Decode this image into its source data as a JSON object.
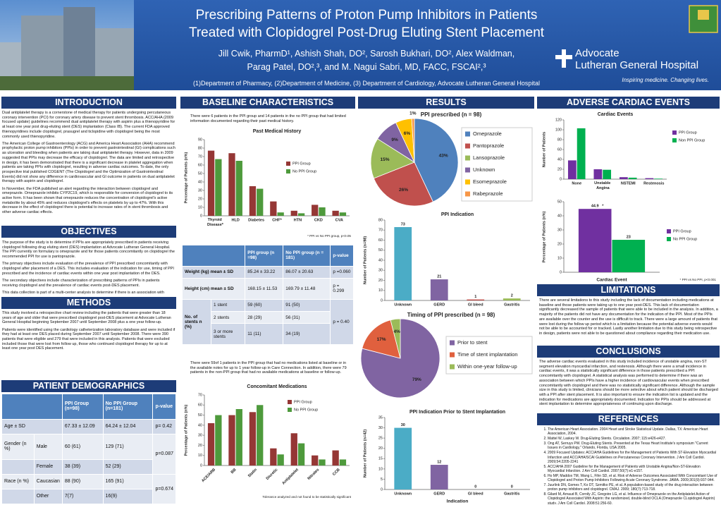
{
  "header": {
    "title": [
      "Prescribing Patterns of Proton Pump Inhibitors in Patients",
      "Treated with Clopidogrel Post-Drug Eluting Stent Placement"
    ],
    "authors": [
      "Jill Cwik, PharmD¹, Ashish Shah, DO², Sarosh Bukhari, DO², Alex Waldman,",
      "Parag Patel, DO²,³, and M. Nagui Sabri, MD, FACC, FSCAI²,³"
    ],
    "affiliations": "(1)Department of Pharmacy, (2)Department of Medicine, (3) Department of Cardiology, Advocate Lutheran General Hospital",
    "logo": {
      "name": "Advocate",
      "subname": "Lutheran General Hospital",
      "tagline": "Inspiring medicine. Changing lives."
    }
  },
  "introduction": {
    "heading": "INTRODUCTION",
    "paragraphs": [
      "Dual antiplatelet therapy is a cornerstone of medical therapy for patients undergoing percutaneous coronary intervention (PCI) for coronary artery disease to prevent stent thrombosis. ACC/AHA (2009 focused update) guidelines recommend dual antiplatelet therapy with aspirin plus a thienopyridine for at least one year post drug-eluting stent (DES) implantation (Class IB). The current FDA approved thienopyridines include clopidogrel, prasugrel and ticlopidine with clopidogrel being the most commonly used thienopyridine.",
      "The American College of Gastroenterology (ACG) and America Heart Association (AHA) recommend prophylactic proton pump inhibitors (PPIs) in order to prevent gastrointestinal (GI) complications such as ulceration and bleeding when patients are taking dual antiplatelet therapy. However, data in 2009 suggested that PPIs may decrease the efficacy of clopidogrel. The data are limited and retrospective in design, it has been demonstrated that there is a significant decrease in platelet aggregation when patients are taking PPIs with clopidogrel, resulting in adverse cardiac outcomes. To date, the only prospective trial published COGENT (The Clopidogrel and the Optimization of Gastrointestinal Events) did not show any difference in cardiovascular and GI outcome in patients on dual antiplatelet therapy with aspirin and clopidogrel.",
      "In November, the FDA published an alert regarding the interaction between clopidogrel and omeprazole. Omeprazole inhibits CYP2C19, which is responsible for conversion of clopidogrel to its active form. It has been shown that omeprazole reduces the concentration of clopidogrel's active metabolite by about 45% and reduces clopidogrel's effects on platelets by up to 47%. With this decrease in the effect of clopidogrel there is potential to increase rates of in stent thrombosis and other adverse cardiac effects."
    ]
  },
  "objectives": {
    "heading": "OBJECTIVES",
    "paragraphs": [
      "The purpose of the study is to determine if PPIs are appropriately prescribed in patients receiving clopidogrel following drug eluting stent (DES) implantation at Advocate Lutheran General Hospital. The PPI currently on formulary is omeprazole and for those patients concomitantly on clopidogrel the recommended PPI for use is pantoprazole.",
      "The primary objectives include evaluation of the prevalence of PPI prescribed concomitantly with clopidogrel after placement of a DES. This includes evaluation of the indication for use, timing of PPI prescribed and the incidence of cardiac events within one year post implantation of the DES.",
      "The secondary objectives include characterization of prescribing patterns of PPIs in patients receiving clopidogrel and the prevalence of cardiac events post-DES placement.",
      "This data collection is part of a multi-center analysis to determine if there is an association with adverse cardiac events including association with in-stent thrombosis for up to one year post-DES placement in patients who received a PPI receiving concomitant clopidogrel therapy."
    ]
  },
  "methods": {
    "heading": "METHODS",
    "paragraphs": [
      "This study involved a retrospective chart review including the patients that were greater than 18 years of age and older that were prescribed clopidogrel post-DES placement at Advocate Lutheran General Hospital beginning September 2007 until September 2008 plus a one year follow-up.",
      "Patients were identified using the cardiology catheterization laboratory database and were included if they had at least one DES placed during September 2007 until September 2008. There were 390 patients that were eligible and 279 that were included in this analysis. Patients that were excluded included those that were lost from follow up, those who continued clopidogrel therapy for up to at least one year post DES placement."
    ]
  },
  "patient_demographics": {
    "heading": "PATIENT DEMOGRAPHICS",
    "header": [
      "PPI Group (n=98)",
      "No PPI Group (n=181)",
      "p-value"
    ],
    "age": {
      "label": "Age ± SD",
      "values": [
        "67.33 ± 12.09",
        "64.24 ± 12.04"
      ],
      "p": "p= 0.42"
    },
    "gender": {
      "label": "Gender (n %)",
      "p": "p=0.087",
      "rows": [
        [
          "Male",
          "60 (61)",
          "129 (71)"
        ],
        [
          "Female",
          "38 (39)",
          "52 (29)"
        ]
      ]
    },
    "race": {
      "label": "Race (n %)",
      "p": "p=0.674",
      "rows": [
        [
          "Caucasian",
          "88 (90)",
          "165 (91)"
        ],
        [
          "Other",
          "7(7)",
          "16(9)"
        ]
      ]
    }
  },
  "baseline": {
    "heading": "BASELINE CHARACTERISTICS",
    "text_top": "There were 6 patients in the PPI group and 14 patients in the no PPI group that had limited information documented regarding their past medical history.",
    "header": [
      "PPI group (n =98)",
      "No PPI group (n = 181)",
      "p-value"
    ],
    "rows": [
      [
        "Weight (kg) mean ± SD",
        "85.24 ± 33.22",
        "86.07 ± 20.63",
        "p =0.060"
      ],
      [
        "Height (cm) mean ± SD",
        "168.15 ± 11.53",
        "169.79 ± 11.48",
        "p = 0.299"
      ]
    ],
    "stents": {
      "label": "No. of stents n (%)",
      "p": "p = 0.40",
      "rows": [
        [
          "1 stent",
          "59 (60)",
          "91 (50)"
        ],
        [
          "2 stents",
          "28 (29)",
          "56 (31)"
        ],
        [
          "3 or more stents",
          "11 (11)",
          "34 (19)"
        ]
      ]
    },
    "text_bottom": "There were 59of 1 patients in the PPI group that had no medications listed at baseline or in the available notes for up to 1 year follow-up in Care Connection. In addition, there were 79 patients in the non-PPI group that had no available medications at baseline or follow-up."
  },
  "results": {
    "heading": "RESULTS"
  },
  "adverse_cardiac_events": {
    "heading": "ADVERSE CARDIAC EVENTS"
  },
  "limitations": {
    "heading": "LIMITATIONS",
    "paragraphs": [
      "There are several limitations to this study including the lack of documentation including medications at baseline and those patients were taking up to one year post-DES. This lack of documentation significantly decreased the sample of patients that were able to be included in the analysis. In addition, a majority of the patients did not have any documentation for the indication of the PPI. Most of the PPIs are available over the counter and the use is difficult to track. There were a large amount of patients that were lost during the follow up period which is a limitation because the potential adverse events would not be able to be accounted for or tracked. Lastly another limitation due to this study being retrospective in design, patients were not able to be questioned about compliance regarding their medication use."
    ]
  },
  "conclusions": {
    "heading": "CONCLUSIONS",
    "paragraphs": [
      "The adverse cardiac events evaluated in this study included incidence of unstable angina, non-ST segment elevation myocardial infarction, and restenosis. Although there were a small incidence in cardiac events, it was a statistically significant difference in those patients prescribed a PPI concomitantly with clopidogrel. A statistical analysis was performed to determine if there was an association between which PPIs have a higher incidence of cardiovascular events when prescribed concomitantly with clopidogrel and there was no statistically significant difference. Although the sample size in this study is limited, clinicians should be more selective about which patient should be discharged with a PPI after stent placement. It is also important to ensure the indication list is updated and the indication for medications are appropriately documented. Indication for PPIs should be addressed at stent implantation to determine appropriateness of continuing upon discharge."
    ]
  },
  "references": {
    "heading": "REFERENCES",
    "items": [
      "The American Heart Association. 2004 Heart and Stroke Statistical Update. Dallas, TX: American Heart Association, 2004.",
      "Mattel W, Laskey W. Drug-Eluting Stents. Circulation. 2007; 115:e426-e427.",
      "Ong AT, Serruys PW. Drug-Eluting Stents. Presented at the Texas Heart Institute's symposium \"Current Issues in Cardiology,\" Orlando, Florida, USA 2005.",
      "2009 Focused Updates: ACC/AHA Guidelines for the Management of Patients With ST-Elevation Myocardial Infarction and ACC/AHA/SCAI Guidelines on Percutaneous Coronary Intervention. J Am Coll Cardiol. 2009;54:2205-2241",
      "ACC/AHA 2007 Guideline for the Management of Patients with Unstable Angina/Non-ST-Elevation Myocardial Infarction. J Am Coll Cardiol. 2007;50(7):e1-e157.",
      "Ho MP, Maddox TM, Wang L, Fihn SD, et al. Risk of Adverse Outcomes Associated With Concomitant Use of Clopidogrel and Proton Pump Inhibitors Following Acute Coronary Syndrome. JAMA. 2009;301(9):937-944.",
      "Juurlink DN, Gomes T, Ko DT, Szmitko PE, et al. A population-based study of the drug interaction between proton pump inhibitors and clopidogrel. CMAJ. 2009; 180(7):713-718.",
      "Gilard M, Arnaud B, Cornily JC, Gregoire LG, et al. Influence of Omeprazole on the Antiplatelet Action of Clopidogrel Associated With Aspirin: the randomized, double-blind OCLA (Omeprazole CLopidogrel Aspirin) study. J Am Coll Cardiol. 2008;51:256-60."
    ]
  },
  "chart_data": [
    {
      "type": "bar",
      "title": "Past Medical History",
      "categories": [
        "Thyroid Disease*",
        "HLD",
        "Diabetes",
        "CHF*",
        "HTN",
        "CKD",
        "CVA"
      ],
      "series": [
        {
          "name": "PPI Group",
          "color": "#953735",
          "values": [
            77,
            74,
            35,
            17,
            6,
            13,
            6
          ]
        },
        {
          "name": "No PPI Group",
          "color": "#4e9a3c",
          "values": [
            67,
            65,
            32,
            4,
            3,
            10,
            4
          ]
        }
      ],
      "ylabel": "Percentage of Patients (n%)",
      "ylim": [
        0,
        90
      ],
      "yticks": [
        0,
        10,
        20,
        30,
        40,
        50,
        60,
        70,
        80,
        90
      ],
      "grid": false,
      "legend": "right",
      "note": "* PPI vs No PPI group, p<0.05"
    },
    {
      "type": "bar",
      "title": "Concomitant Medications",
      "categories": [
        "ACE/ARB",
        "BB",
        "Statin",
        "Diuretic",
        "Antiplatelet",
        "Nitrates",
        "CCB"
      ],
      "series": [
        {
          "name": "PPI Group",
          "color": "#953735",
          "values": [
            42,
            50,
            53,
            17,
            32,
            10,
            15
          ]
        },
        {
          "name": "No PPI Group",
          "color": "#4e9a3c",
          "values": [
            50,
            56,
            60,
            11,
            22,
            6,
            6
          ]
        }
      ],
      "ylabel": "Percentage of Patients (n%)",
      "ylim": [
        0,
        70
      ],
      "yticks": [
        0,
        10,
        20,
        30,
        40,
        50,
        60,
        70
      ],
      "grid": false,
      "legend": "right",
      "note": "Tolerance analyzed and not found to be statistically significant"
    },
    {
      "type": "pie",
      "title": "PPI prescribed (n = 98)",
      "categories": [
        "Omeprazole",
        "Pantoprazole",
        "Lansoprazole",
        "Unknown",
        "Esomeprazole",
        "Rabeprazole"
      ],
      "values": [
        43,
        26,
        15,
        9,
        6,
        1
      ],
      "value_labels": [
        "43%",
        "26%",
        "15%",
        "9%",
        "6%",
        "1%"
      ],
      "colors": [
        "#4f81bd",
        "#c0504d",
        "#9bbb59",
        "#8064a2",
        "#ffc000",
        "#f79646"
      ],
      "legend": "right"
    },
    {
      "type": "bar",
      "title": "PPI Indication",
      "categories": [
        "Unknown",
        "GERD",
        "GI bleed",
        "Gastritis"
      ],
      "values": [
        73,
        21,
        1,
        2
      ],
      "colors": [
        "#4bacc6",
        "#8064a2",
        "#c0504d",
        "#9bbb59"
      ],
      "data_labels": true,
      "ylabel": "Number of Patients (n=98)",
      "ylim": [
        0,
        80
      ],
      "yticks": [
        0,
        10,
        20,
        30,
        40,
        50,
        60,
        70,
        80
      ],
      "grid": false
    },
    {
      "type": "pie",
      "title": "Timing of PPI prescribed (n = 98)",
      "categories": [
        "Prior to stent",
        "Time of stent implantation",
        "Within one-year follow-up"
      ],
      "values": [
        79,
        17,
        4
      ],
      "value_labels": [
        "79%",
        "17%",
        "4%"
      ],
      "colors": [
        "#8064a2",
        "#e0603e",
        "#9bbb59"
      ],
      "legend": "right"
    },
    {
      "type": "bar",
      "title": "PPI Indication Prior to Stent Implantation",
      "categories": [
        "Unknown",
        "GERD",
        "GI bleed",
        "Gastritis"
      ],
      "values": [
        30,
        12,
        0,
        0
      ],
      "colors": [
        "#4bacc6",
        "#8064a2",
        "#c0504d",
        "#9bbb59"
      ],
      "data_labels": true,
      "xlabel": "Indication",
      "ylabel": "Number of Patients (n=42)",
      "ylim": [
        0,
        35
      ],
      "yticks": [
        0,
        5,
        10,
        15,
        20,
        25,
        30,
        35
      ],
      "grid": false
    },
    {
      "type": "bar",
      "title": "Cardiac Events",
      "categories": [
        "None",
        "Unstable Angina",
        "NSTEMI",
        "Restenosis"
      ],
      "series": [
        {
          "name": "PPI Group",
          "color": "#7030a0",
          "values": [
            38,
            20,
            4,
            2
          ]
        },
        {
          "name": "Non PPI Group",
          "color": "#00b050",
          "values": [
            103,
            19,
            3,
            1
          ]
        }
      ],
      "ylabel": "Number of Patients",
      "ylim": [
        0,
        120
      ],
      "yticks": [
        0,
        20,
        40,
        60,
        80,
        100,
        120
      ],
      "grid": false,
      "legend": "right"
    },
    {
      "type": "bar",
      "categories": [
        null
      ],
      "series": [
        {
          "name": "PPI Group",
          "color": "#7030a0",
          "values": [
            44.9
          ]
        },
        {
          "name": "No PPI Group",
          "color": "#00b050",
          "values": [
            23
          ]
        }
      ],
      "data_labels": true,
      "annotation": "*",
      "xlabel": "Cardiac Event",
      "ylabel": "Percentage of Patients (n%)",
      "ylim": [
        0,
        50
      ],
      "yticks": [
        0,
        10,
        20,
        30,
        40,
        50
      ],
      "grid": false,
      "legend": "right",
      "note": "* PPI vs No PPI, p<0.001"
    }
  ]
}
